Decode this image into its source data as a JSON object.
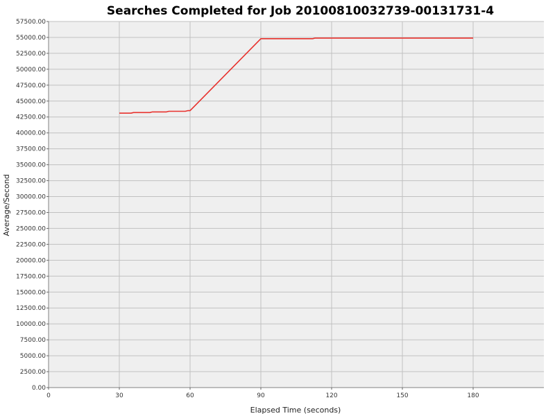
{
  "chart_data": {
    "type": "line",
    "title": "Searches Completed for Job 20100810032739-00131731-4",
    "xlabel": "Elapsed Time (seconds)",
    "ylabel": "Average/Second",
    "xlim": [
      0,
      210
    ],
    "ylim": [
      0,
      57500
    ],
    "x_ticks": [
      0,
      30,
      60,
      90,
      120,
      150,
      180
    ],
    "x_tick_labels": [
      "0",
      "30",
      "60",
      "90",
      "120",
      "150",
      "180"
    ],
    "y_ticks": [
      0,
      2500,
      5000,
      7500,
      10000,
      12500,
      15000,
      17500,
      20000,
      22500,
      25000,
      27500,
      30000,
      32500,
      35000,
      37500,
      40000,
      42500,
      45000,
      47500,
      50000,
      52500,
      55000,
      57500
    ],
    "y_tick_labels": [
      "0.00",
      "2500.00",
      "5000.00",
      "7500.00",
      "10000.00",
      "12500.00",
      "15000.00",
      "17500.00",
      "20000.00",
      "22500.00",
      "25000.00",
      "27500.00",
      "30000.00",
      "32500.00",
      "35000.00",
      "37500.00",
      "40000.00",
      "42500.00",
      "45000.00",
      "47500.00",
      "50000.00",
      "52500.00",
      "55000.00",
      "57500.00"
    ],
    "grid": true,
    "series": [
      {
        "color": "#e8302c",
        "x": [
          30,
          35,
          36,
          43,
          44,
          50,
          51,
          58,
          59,
          60,
          90,
          112,
          113,
          120,
          150,
          180
        ],
        "y": [
          43100,
          43100,
          43200,
          43200,
          43300,
          43300,
          43400,
          43400,
          43500,
          43500,
          54800,
          54800,
          54900,
          54900,
          54900,
          54900
        ]
      }
    ]
  },
  "colors": {
    "plot_background": "#efefef",
    "grid": "#c0c0c0",
    "line": "#e8302c"
  }
}
